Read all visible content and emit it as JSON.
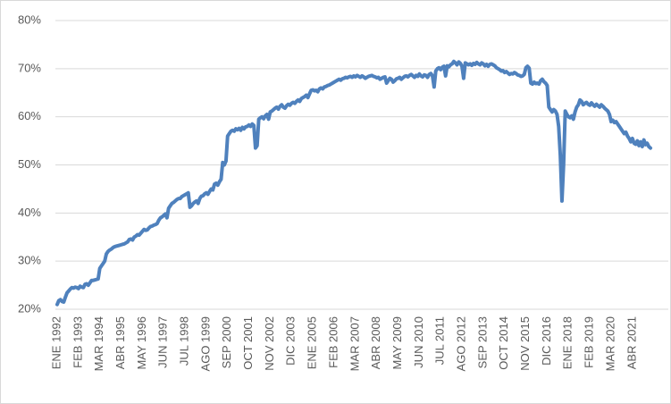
{
  "chart_data": {
    "type": "line",
    "categories": [
      "ENE 1992",
      null,
      null,
      null,
      null,
      null,
      null,
      null,
      null,
      null,
      null,
      null,
      null,
      "FEB 1993",
      null,
      null,
      null,
      null,
      null,
      null,
      null,
      null,
      null,
      null,
      null,
      null,
      "MAR 1994",
      null,
      null,
      null,
      null,
      null,
      null,
      null,
      null,
      null,
      null,
      null,
      null,
      "ABR 1995",
      null,
      null,
      null,
      null,
      null,
      null,
      null,
      null,
      null,
      null,
      null,
      null,
      "MAY 1996",
      null,
      null,
      null,
      null,
      null,
      null,
      null,
      null,
      null,
      null,
      null,
      null,
      "JUN 1997",
      null,
      null,
      null,
      null,
      null,
      null,
      null,
      null,
      null,
      null,
      null,
      null,
      "JUL 1998",
      null,
      null,
      null,
      null,
      null,
      null,
      null,
      null,
      null,
      null,
      null,
      null,
      "AGO 1999",
      null,
      null,
      null,
      null,
      null,
      null,
      null,
      null,
      null,
      null,
      null,
      null,
      "SEP 2000",
      null,
      null,
      null,
      null,
      null,
      null,
      null,
      null,
      null,
      null,
      null,
      null,
      "OCT 2001",
      null,
      null,
      null,
      null,
      null,
      null,
      null,
      null,
      null,
      null,
      null,
      null,
      "NOV 2002",
      null,
      null,
      null,
      null,
      null,
      null,
      null,
      null,
      null,
      null,
      null,
      null,
      "DIC 2003",
      null,
      null,
      null,
      null,
      null,
      null,
      null,
      null,
      null,
      null,
      null,
      null,
      "ENE 2005",
      null,
      null,
      null,
      null,
      null,
      null,
      null,
      null,
      null,
      null,
      null,
      null,
      "FEB 2006",
      null,
      null,
      null,
      null,
      null,
      null,
      null,
      null,
      null,
      null,
      null,
      null,
      "MAR 2007",
      null,
      null,
      null,
      null,
      null,
      null,
      null,
      null,
      null,
      null,
      null,
      null,
      "ABR 2008",
      null,
      null,
      null,
      null,
      null,
      null,
      null,
      null,
      null,
      null,
      null,
      null,
      "MAY 2009",
      null,
      null,
      null,
      null,
      null,
      null,
      null,
      null,
      null,
      null,
      null,
      null,
      "JUN 2010",
      null,
      null,
      null,
      null,
      null,
      null,
      null,
      null,
      null,
      null,
      null,
      null,
      "JUL 2011",
      null,
      null,
      null,
      null,
      null,
      null,
      null,
      null,
      null,
      null,
      null,
      null,
      "AGO 2012",
      null,
      null,
      null,
      null,
      null,
      null,
      null,
      null,
      null,
      null,
      null,
      null,
      "SEP 2013",
      null,
      null,
      null,
      null,
      null,
      null,
      null,
      null,
      null,
      null,
      null,
      null,
      "OCT 2014",
      null,
      null,
      null,
      null,
      null,
      null,
      null,
      null,
      null,
      null,
      null,
      null,
      "NOV 2015",
      null,
      null,
      null,
      null,
      null,
      null,
      null,
      null,
      null,
      null,
      null,
      null,
      "DIC 2016",
      null,
      null,
      null,
      null,
      null,
      null,
      null,
      null,
      null,
      null,
      null,
      null,
      "ENE 2018",
      null,
      null,
      null,
      null,
      null,
      null,
      null,
      null,
      null,
      null,
      null,
      null,
      "FEB 2019",
      null,
      null,
      null,
      null,
      null,
      null,
      null,
      null,
      null,
      null,
      null,
      null,
      "MAR 2020",
      null,
      null,
      null,
      null,
      null,
      null,
      null,
      null,
      null,
      null,
      null,
      null,
      "ABR 2021",
      null,
      null,
      null,
      null,
      null,
      null,
      null,
      null,
      null,
      null,
      null
    ],
    "values": [
      21,
      21.8,
      22,
      21.6,
      21.5,
      22.5,
      23.4,
      23.8,
      24.2,
      24.5,
      24.4,
      24.6,
      24.5,
      24.3,
      24.8,
      24.6,
      24.5,
      25.2,
      25.3,
      25,
      25.5,
      26,
      26,
      26.1,
      26.2,
      26.3,
      28.5,
      29,
      29.5,
      30,
      31.5,
      32,
      32.3,
      32.5,
      32.8,
      33,
      33.1,
      33.2,
      33.3,
      33.4,
      33.5,
      33.6,
      33.8,
      34,
      34.5,
      34.6,
      34.4,
      35,
      35.2,
      35.5,
      35.4,
      35.8,
      36.2,
      36.6,
      36.4,
      36.5,
      36.9,
      37.2,
      37.3,
      37.5,
      37.6,
      37.8,
      38.5,
      39,
      39.2,
      39.5,
      39.8,
      39,
      41,
      41.5,
      42,
      42.2,
      42.5,
      42.8,
      43,
      43,
      43.4,
      43.6,
      43.8,
      44,
      44.2,
      41.2,
      41.5,
      42,
      42.3,
      42.5,
      42,
      43,
      43.5,
      43.6,
      44,
      44.2,
      43.9,
      44.5,
      45,
      44.8,
      46,
      46.2,
      45.8,
      46.5,
      47,
      50.5,
      50,
      50.8,
      56,
      56.5,
      57,
      57.2,
      57,
      57.5,
      57.3,
      57.6,
      57.2,
      57.8,
      57.5,
      57.9,
      58,
      58.3,
      58,
      58.5,
      58.2,
      53.5,
      54,
      59.5,
      59.8,
      60,
      59.6,
      60.2,
      60.5,
      59.5,
      61,
      61.2,
      61.5,
      61.8,
      62,
      61.6,
      62.2,
      62.5,
      62,
      61.8,
      62.3,
      62.6,
      62.4,
      62.8,
      63,
      62.8,
      63.2,
      63.5,
      63.2,
      63.8,
      64,
      64.2,
      64.5,
      64,
      64.8,
      65.5,
      65.6,
      65.4,
      65.5,
      65.2,
      65.8,
      66,
      65.8,
      66.2,
      66.3,
      66.5,
      66.6,
      66.8,
      67,
      67.2,
      67.4,
      67.6,
      67.8,
      67.6,
      67.9,
      68,
      68.2,
      68.1,
      68.3,
      68.4,
      68.2,
      68.5,
      68.3,
      68.6,
      68.4,
      68.2,
      68.5,
      68.3,
      68,
      68.2,
      68.4,
      68.5,
      68.6,
      68.4,
      68.3,
      68.1,
      68.2,
      67.8,
      68,
      68.2,
      68.3,
      67,
      67.5,
      68,
      67.8,
      67.2,
      67.5,
      67.9,
      68,
      68.2,
      67.8,
      68.1,
      68.4,
      68.5,
      68.3,
      68.6,
      68.8,
      68.5,
      68.2,
      68.6,
      68.4,
      68.9,
      68.5,
      68.3,
      68.7,
      68.6,
      68.2,
      68.8,
      69,
      68.5,
      66.2,
      69.5,
      70,
      70.2,
      69.8,
      70.3,
      70.5,
      68.5,
      70.6,
      70.4,
      70.8,
      71,
      71.5,
      71.2,
      70.8,
      71.4,
      71.1,
      70.5,
      68,
      71.2,
      71,
      70.8,
      71,
      70.7,
      71.1,
      70.9,
      71.3,
      71,
      70.8,
      71.2,
      71,
      70.6,
      70.9,
      70.5,
      70.9,
      71,
      70.8,
      70.6,
      70.2,
      70,
      69.8,
      69.5,
      69.6,
      69.2,
      69.4,
      69.1,
      68.8,
      69,
      68.9,
      69.2,
      69,
      68.7,
      68.6,
      68.4,
      68.5,
      68.8,
      70.2,
      70.5,
      70.1,
      67,
      66.8,
      67.2,
      66.9,
      67,
      66.8,
      67.5,
      67.8,
      67.3,
      67,
      66.5,
      62,
      61.5,
      61,
      61.5,
      61.2,
      60.5,
      58,
      52,
      42.5,
      50,
      61.2,
      60.5,
      60,
      59.8,
      60.2,
      59.5,
      61,
      62,
      62.5,
      63.5,
      63.2,
      62.5,
      62.8,
      63,
      62.6,
      62.4,
      62.9,
      62.5,
      62.2,
      62.6,
      62.3,
      62,
      62.5,
      62.2,
      61.8,
      61.5,
      61.2,
      60.5,
      59,
      59.3,
      58.8,
      59,
      58.5,
      58,
      57.5,
      57,
      56.5,
      56.8,
      56,
      55.5,
      54.8,
      55.5,
      54.5,
      54.3,
      55,
      54,
      54.8,
      53.8,
      55.2,
      54.2,
      54.5,
      53.8,
      53.5
    ],
    "color": "#4f81bd",
    "ylim": [
      20,
      80
    ],
    "yticks": [
      {
        "value": 20,
        "label": "20%"
      },
      {
        "value": 30,
        "label": "30%"
      },
      {
        "value": 40,
        "label": "40%"
      },
      {
        "value": 50,
        "label": "50%"
      },
      {
        "value": 60,
        "label": "60%"
      },
      {
        "value": 70,
        "label": "70%"
      },
      {
        "value": 80,
        "label": "80%"
      }
    ],
    "grid": true
  }
}
